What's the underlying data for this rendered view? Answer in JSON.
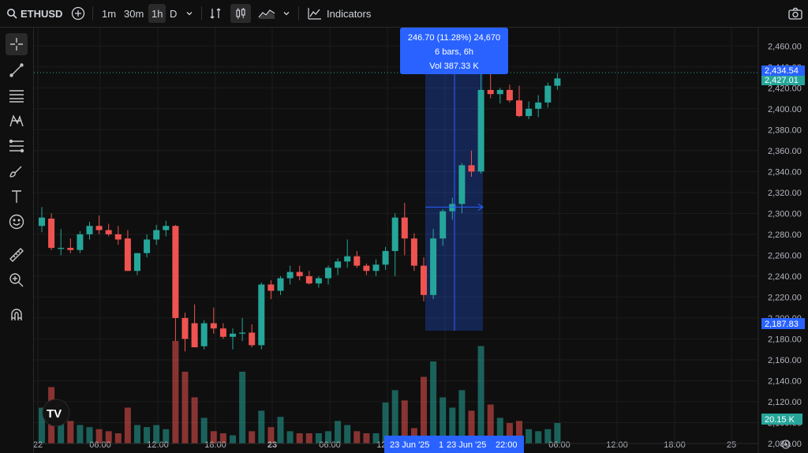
{
  "toolbar": {
    "symbol": "ETHUSD",
    "intervals": [
      "1m",
      "30m",
      "1h",
      "D"
    ],
    "active_interval": "1h",
    "indicators_label": "Indicators"
  },
  "measure": {
    "line1": "246.70 (11.28%) 24,670",
    "line2": "6 bars, 6h",
    "line3": "Vol 387.33 K"
  },
  "price_tags": {
    "top": "2,434.54",
    "current": "2,427.01",
    "bottom": "2,187.83",
    "volume": "20.15 K"
  },
  "time_tags": {
    "left": "23 Jun '25",
    "mid": "1",
    "right_date": "23 Jun '25",
    "right_time": "22:00"
  },
  "colors": {
    "up": "#26a69a",
    "down": "#ef5350",
    "accent": "#2962ff",
    "background": "#0f0f0f"
  },
  "chart_data": {
    "type": "candlestick",
    "symbol": "ETHUSD",
    "interval": "1h",
    "ylim": [
      2080,
      2470
    ],
    "y_ticks": [
      "2,460.00",
      "2,440.00",
      "2,420.00",
      "2,400.00",
      "2,380.00",
      "2,360.00",
      "2,340.00",
      "2,320.00",
      "2,300.00",
      "2,280.00",
      "2,260.00",
      "2,240.00",
      "2,220.00",
      "2,200.00",
      "2,180.00",
      "2,160.00",
      "2,140.00",
      "2,120.00",
      "2,100.00",
      "2,080.00"
    ],
    "x_ticks": [
      "22",
      "06:00",
      "12:00",
      "18:00",
      "23",
      "06:00",
      "12:00",
      "18:00",
      "06:00",
      "12:00",
      "18:00",
      "25"
    ],
    "grid": true,
    "candles": [
      {
        "o": 2288,
        "h": 2306,
        "l": 2282,
        "c": 2296,
        "v": 0.35
      },
      {
        "o": 2295,
        "h": 2300,
        "l": 2265,
        "c": 2267,
        "v": 0.55
      },
      {
        "o": 2266,
        "h": 2285,
        "l": 2260,
        "c": 2267,
        "v": 0.4
      },
      {
        "o": 2267,
        "h": 2276,
        "l": 2262,
        "c": 2265,
        "v": 0.22
      },
      {
        "o": 2265,
        "h": 2283,
        "l": 2262,
        "c": 2280,
        "v": 0.18
      },
      {
        "o": 2280,
        "h": 2292,
        "l": 2275,
        "c": 2288,
        "v": 0.16
      },
      {
        "o": 2288,
        "h": 2298,
        "l": 2280,
        "c": 2284,
        "v": 0.14
      },
      {
        "o": 2284,
        "h": 2290,
        "l": 2278,
        "c": 2280,
        "v": 0.12
      },
      {
        "o": 2280,
        "h": 2288,
        "l": 2270,
        "c": 2275,
        "v": 0.1
      },
      {
        "o": 2276,
        "h": 2284,
        "l": 2245,
        "c": 2245,
        "v": 0.35
      },
      {
        "o": 2245,
        "h": 2262,
        "l": 2241,
        "c": 2262,
        "v": 0.18
      },
      {
        "o": 2262,
        "h": 2280,
        "l": 2258,
        "c": 2275,
        "v": 0.16
      },
      {
        "o": 2275,
        "h": 2289,
        "l": 2270,
        "c": 2284,
        "v": 0.18
      },
      {
        "o": 2284,
        "h": 2293,
        "l": 2278,
        "c": 2288,
        "v": 0.14
      },
      {
        "o": 2288,
        "h": 2289,
        "l": 2178,
        "c": 2200,
        "v": 1.0
      },
      {
        "o": 2200,
        "h": 2205,
        "l": 2168,
        "c": 2180,
        "v": 0.7
      },
      {
        "o": 2195,
        "h": 2213,
        "l": 2173,
        "c": 2172,
        "v": 0.45
      },
      {
        "o": 2173,
        "h": 2198,
        "l": 2170,
        "c": 2195,
        "v": 0.25
      },
      {
        "o": 2195,
        "h": 2210,
        "l": 2185,
        "c": 2190,
        "v": 0.12
      },
      {
        "o": 2190,
        "h": 2195,
        "l": 2180,
        "c": 2182,
        "v": 0.1
      },
      {
        "o": 2182,
        "h": 2190,
        "l": 2170,
        "c": 2185,
        "v": 0.08
      },
      {
        "o": 2185,
        "h": 2200,
        "l": 2178,
        "c": 2186,
        "v": 0.7
      },
      {
        "o": 2186,
        "h": 2194,
        "l": 2172,
        "c": 2174,
        "v": 0.12
      },
      {
        "o": 2174,
        "h": 2234,
        "l": 2170,
        "c": 2232,
        "v": 0.32
      },
      {
        "o": 2232,
        "h": 2236,
        "l": 2218,
        "c": 2226,
        "v": 0.16
      },
      {
        "o": 2226,
        "h": 2240,
        "l": 2222,
        "c": 2238,
        "v": 0.26
      },
      {
        "o": 2238,
        "h": 2250,
        "l": 2232,
        "c": 2244,
        "v": 0.12
      },
      {
        "o": 2244,
        "h": 2250,
        "l": 2236,
        "c": 2240,
        "v": 0.1
      },
      {
        "o": 2240,
        "h": 2245,
        "l": 2232,
        "c": 2233,
        "v": 0.1
      },
      {
        "o": 2233,
        "h": 2240,
        "l": 2229,
        "c": 2238,
        "v": 0.1
      },
      {
        "o": 2238,
        "h": 2250,
        "l": 2232,
        "c": 2248,
        "v": 0.12
      },
      {
        "o": 2248,
        "h": 2257,
        "l": 2241,
        "c": 2254,
        "v": 0.22
      },
      {
        "o": 2254,
        "h": 2275,
        "l": 2248,
        "c": 2259,
        "v": 0.18
      },
      {
        "o": 2259,
        "h": 2264,
        "l": 2248,
        "c": 2250,
        "v": 0.12
      },
      {
        "o": 2250,
        "h": 2252,
        "l": 2241,
        "c": 2245,
        "v": 0.1
      },
      {
        "o": 2245,
        "h": 2256,
        "l": 2240,
        "c": 2251,
        "v": 0.1
      },
      {
        "o": 2251,
        "h": 2268,
        "l": 2246,
        "c": 2264,
        "v": 0.4
      },
      {
        "o": 2264,
        "h": 2300,
        "l": 2240,
        "c": 2296,
        "v": 0.52
      },
      {
        "o": 2296,
        "h": 2310,
        "l": 2260,
        "c": 2276,
        "v": 0.42
      },
      {
        "o": 2276,
        "h": 2281,
        "l": 2245,
        "c": 2250,
        "v": 0.15
      },
      {
        "o": 2250,
        "h": 2258,
        "l": 2216,
        "c": 2222,
        "v": 0.65
      },
      {
        "o": 2222,
        "h": 2285,
        "l": 2218,
        "c": 2276,
        "v": 0.8
      },
      {
        "o": 2276,
        "h": 2304,
        "l": 2269,
        "c": 2302,
        "v": 0.45
      },
      {
        "o": 2302,
        "h": 2315,
        "l": 2294,
        "c": 2309,
        "v": 0.35
      },
      {
        "o": 2309,
        "h": 2348,
        "l": 2300,
        "c": 2346,
        "v": 0.52
      },
      {
        "o": 2346,
        "h": 2360,
        "l": 2335,
        "c": 2340,
        "v": 0.32
      },
      {
        "o": 2340,
        "h": 2440,
        "l": 2338,
        "c": 2418,
        "v": 0.95
      },
      {
        "o": 2418,
        "h": 2435,
        "l": 2410,
        "c": 2414,
        "v": 0.38
      },
      {
        "o": 2414,
        "h": 2420,
        "l": 2405,
        "c": 2418,
        "v": 0.25
      },
      {
        "o": 2418,
        "h": 2423,
        "l": 2406,
        "c": 2408,
        "v": 0.2
      },
      {
        "o": 2408,
        "h": 2422,
        "l": 2392,
        "c": 2393,
        "v": 0.22
      },
      {
        "o": 2393,
        "h": 2407,
        "l": 2390,
        "c": 2400,
        "v": 0.14
      },
      {
        "o": 2400,
        "h": 2413,
        "l": 2392,
        "c": 2406,
        "v": 0.12
      },
      {
        "o": 2406,
        "h": 2425,
        "l": 2401,
        "c": 2422,
        "v": 0.14
      },
      {
        "o": 2422,
        "h": 2434,
        "l": 2418,
        "c": 2429,
        "v": 0.2
      }
    ]
  }
}
